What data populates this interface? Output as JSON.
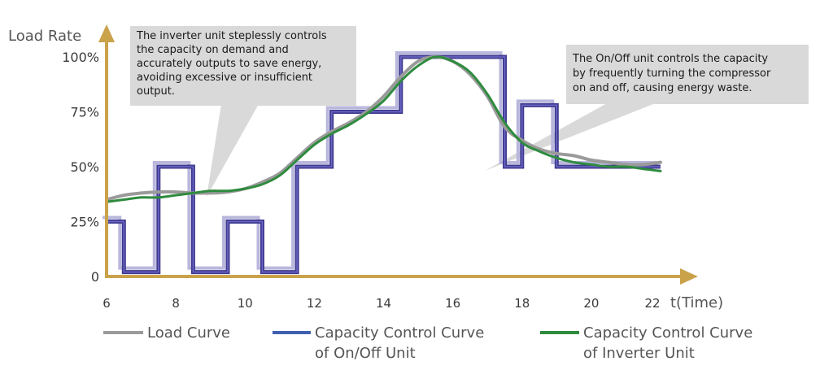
{
  "chart_data": {
    "type": "line",
    "ylabel": "Load Rate",
    "xlabel": "t(Time)",
    "x_ticks": [
      6,
      8,
      10,
      12,
      14,
      16,
      18,
      20,
      22
    ],
    "y_ticks": [
      "0",
      "25%",
      "50%",
      "75%",
      "100%"
    ],
    "y_tick_values": [
      0,
      25,
      50,
      75,
      100
    ],
    "xlim": [
      6,
      22
    ],
    "ylim": [
      0,
      100
    ],
    "series": [
      {
        "name": "Load Curve",
        "color": "#9a9a9a",
        "x": [
          6,
          6.5,
          7,
          7.5,
          8,
          8.5,
          9,
          9.5,
          10,
          10.5,
          11,
          11.5,
          12,
          12.5,
          13,
          13.5,
          14,
          14.5,
          15,
          15.5,
          16,
          16.5,
          17,
          17.5,
          18,
          18.5,
          19,
          19.5,
          20,
          20.5,
          21,
          21.5,
          22
        ],
        "y": [
          35,
          37,
          38,
          38.5,
          38.5,
          38,
          38,
          38.5,
          40,
          43,
          47,
          54,
          61,
          66,
          70,
          75,
          82,
          91,
          98,
          100,
          98,
          92,
          82,
          68,
          62,
          58,
          56,
          55,
          53,
          52,
          51,
          51,
          52
        ]
      },
      {
        "name": "Capacity Control Curve of On/Off Unit",
        "color": "#3f3a8e",
        "x": [
          6,
          6.5,
          6.5,
          7.5,
          7.5,
          8.5,
          8.5,
          9.5,
          9.5,
          10.5,
          10.5,
          11.5,
          11.5,
          12.5,
          12.5,
          13.5,
          13.5,
          14.5,
          14.5,
          15.5,
          15.5,
          16.5,
          16.5,
          17.5,
          17.5,
          17.5,
          18,
          18,
          19,
          19,
          20,
          21,
          22
        ],
        "y": [
          25,
          25,
          2,
          2,
          50,
          50,
          2,
          2,
          25,
          25,
          2,
          2,
          50,
          50,
          75,
          75,
          75,
          75,
          100,
          100,
          100,
          100,
          100,
          100,
          50,
          50,
          50,
          78,
          78,
          50,
          50,
          50,
          50
        ]
      },
      {
        "name": "Capacity Control Curve of Inverter Unit",
        "color": "#2e8b3e",
        "x": [
          6,
          6.5,
          7,
          7.5,
          8,
          8.5,
          9,
          9.5,
          10,
          10.5,
          11,
          11.5,
          12,
          12.5,
          13,
          13.5,
          14,
          14.5,
          15,
          15.5,
          16,
          16.5,
          17,
          17.5,
          18,
          18.5,
          19,
          19.5,
          20,
          20.5,
          21,
          21.5,
          22
        ],
        "y": [
          34,
          35,
          36,
          36,
          37,
          38,
          39,
          39,
          40,
          42,
          46,
          53,
          60,
          65,
          69,
          74,
          80,
          89,
          96,
          100,
          98,
          93,
          83,
          70,
          61,
          57,
          54,
          52,
          51,
          50,
          50,
          49,
          48
        ]
      }
    ],
    "annotations": [
      "The inverter unit steplessly controls the capacity on demand and accurately outputs to save energy, avoiding excessive or insufficient output.",
      "The On/Off unit controls the capacity by frequently turning the compressor on and off, causing energy waste."
    ],
    "legend": {
      "placement": "bottom",
      "entries": [
        {
          "line1": "Load Curve",
          "line2": "",
          "color": "#9a9a9a"
        },
        {
          "line1": "Capacity Control Curve",
          "line2": "of On/Off Unit",
          "color": "#3f5fb0"
        },
        {
          "line1": "Capacity Control Curve",
          "line2": "of Inverter Unit",
          "color": "#2e8b3e"
        }
      ]
    }
  },
  "callouts": {
    "inverter": {
      "lines": [
        "The inverter unit steplessly controls",
        "the capacity on demand and",
        "accurately  outputs to save energy,",
        "avoiding excessive or insufficient",
        "output."
      ]
    },
    "onoff": {
      "lines": [
        "The On/Off unit controls the capacity",
        "by frequently turning the compressor",
        "on and off, causing energy waste."
      ]
    }
  },
  "colors": {
    "axis": "#c9a24a",
    "callout_bg": "#d9d9d9"
  }
}
